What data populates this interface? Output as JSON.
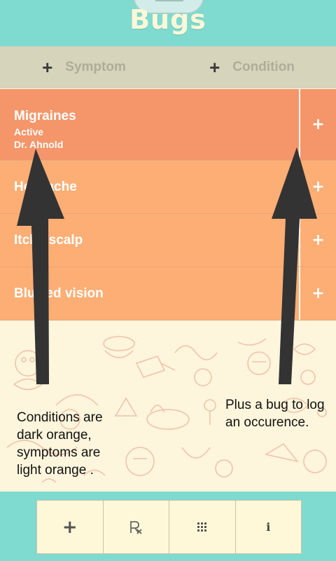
{
  "header": {
    "title": "Bugs"
  },
  "add_bar": {
    "symptom_label": "Symptom",
    "condition_label": "Condition"
  },
  "list": {
    "condition": {
      "name": "Migraines",
      "status": "Active",
      "doctor": "Dr. Ahnold"
    },
    "symptoms": [
      {
        "name": "Headache"
      },
      {
        "name": "Itchy scalp"
      },
      {
        "name": "Blurred vision"
      }
    ],
    "plus_glyph": "+"
  },
  "annotations": {
    "left_note": [
      "Conditions are",
      "dark orange,",
      "symptoms are",
      "light orange ."
    ],
    "right_note": [
      "Plus a bug to log",
      "an occurence."
    ]
  },
  "bottom_bar": {
    "buttons": [
      {
        "icon": "plus-icon",
        "glyph": "+"
      },
      {
        "icon": "prescription-icon",
        "glyph": "Rx"
      },
      {
        "icon": "grid-icon",
        "glyph": ""
      },
      {
        "icon": "info-icon",
        "glyph": "i"
      }
    ]
  },
  "colors": {
    "header_teal": "#7fdad0",
    "condition_orange": "#f4966a",
    "symptom_orange": "#fdae74",
    "add_bar": "#d6d4ba",
    "background_cream": "#fdf5dc"
  }
}
